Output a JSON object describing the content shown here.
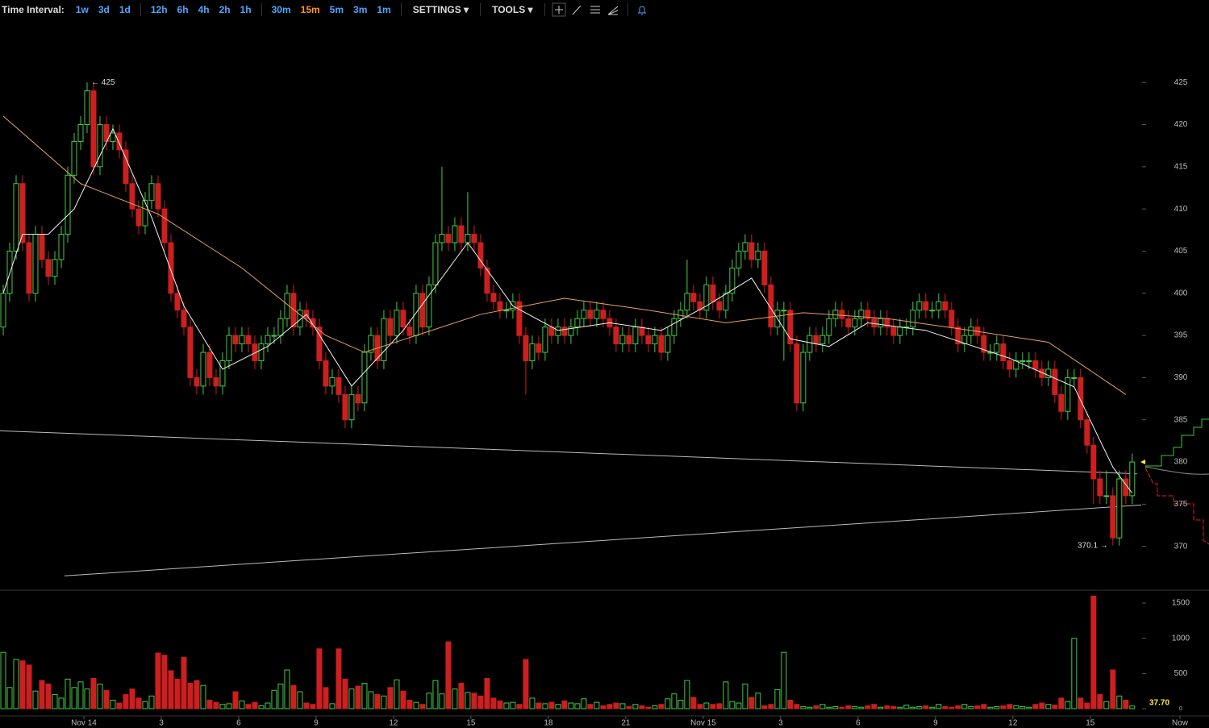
{
  "toolbar": {
    "label": "Time Interval:",
    "groups": [
      [
        "1w",
        "3d",
        "1d"
      ],
      [
        "12h",
        "6h",
        "4h",
        "2h",
        "1h"
      ],
      [
        "30m",
        "15m",
        "5m",
        "3m",
        "1m"
      ]
    ],
    "active": "15m",
    "settings": "SETTINGS",
    "tools": "TOOLS"
  },
  "chart_data": {
    "type": "candlestick",
    "up_color": "#44cc44",
    "down_color": "#cc1f1f",
    "open": [
      396,
      400,
      405,
      413,
      406,
      400,
      407,
      404,
      402,
      404,
      407,
      414,
      418,
      420,
      424,
      415,
      420,
      418,
      419,
      417,
      413,
      410,
      408,
      411,
      413,
      410,
      406,
      400,
      398,
      396,
      390,
      389,
      393,
      390,
      389,
      392,
      395,
      394,
      395,
      394,
      392,
      394,
      395,
      395,
      397,
      400,
      396,
      398,
      397,
      396,
      392,
      389,
      390,
      388,
      385,
      388,
      387,
      393,
      395,
      392,
      397,
      395,
      398,
      396,
      395,
      400,
      396,
      401,
      406,
      407,
      406,
      408,
      406,
      407,
      406,
      403,
      400,
      399,
      398,
      398,
      399,
      395,
      392,
      394,
      393,
      396,
      395,
      396,
      395,
      396,
      397,
      398,
      397,
      398,
      397,
      396,
      394,
      395,
      394,
      396,
      395,
      394,
      395,
      393,
      395,
      397,
      398,
      400,
      399,
      398,
      401,
      399,
      398,
      400,
      403,
      405,
      406,
      404,
      405,
      401,
      396,
      398,
      398,
      394,
      387,
      393,
      395,
      394,
      395,
      397,
      398,
      397,
      396,
      397,
      398,
      397,
      396,
      397,
      396,
      395,
      396,
      396,
      398,
      399,
      398,
      398,
      399,
      398,
      396,
      394,
      395,
      396,
      395,
      393,
      393,
      394,
      392,
      391,
      392,
      392,
      392,
      391,
      390,
      391,
      388,
      386,
      390,
      390,
      385,
      382,
      378,
      376,
      376,
      371,
      378,
      376
    ],
    "high": [
      401,
      406,
      414,
      414,
      407,
      408,
      408,
      405,
      405,
      408,
      415,
      419,
      421,
      425,
      425,
      421,
      421,
      420,
      420,
      418,
      414,
      411,
      412,
      414,
      414,
      411,
      407,
      401,
      399,
      397,
      391,
      394,
      394,
      391,
      393,
      396,
      396,
      396,
      396,
      395,
      395,
      396,
      396,
      398,
      401,
      401,
      399,
      399,
      398,
      397,
      393,
      391,
      391,
      389,
      389,
      389,
      394,
      396,
      396,
      398,
      398,
      399,
      399,
      397,
      401,
      401,
      402,
      407,
      415,
      408,
      409,
      409,
      412,
      408,
      407,
      404,
      401,
      400,
      399,
      400,
      400,
      396,
      395,
      395,
      397,
      397,
      397,
      397,
      397,
      398,
      399,
      399,
      399,
      399,
      398,
      397,
      396,
      396,
      397,
      397,
      396,
      396,
      396,
      396,
      398,
      399,
      404,
      401,
      400,
      402,
      402,
      400,
      401,
      404,
      406,
      407,
      407,
      406,
      406,
      402,
      399,
      399,
      399,
      395,
      394,
      396,
      396,
      396,
      398,
      399,
      399,
      398,
      398,
      399,
      399,
      398,
      398,
      398,
      397,
      397,
      397,
      399,
      400,
      400,
      399,
      400,
      400,
      399,
      397,
      396,
      397,
      397,
      396,
      394,
      395,
      395,
      393,
      393,
      393,
      393,
      393,
      392,
      392,
      392,
      389,
      391,
      391,
      391,
      386,
      383,
      379,
      379,
      377,
      379,
      379,
      381
    ],
    "low": [
      395,
      399,
      404,
      405,
      399,
      399,
      403,
      401,
      401,
      403,
      406,
      413,
      417,
      419,
      414,
      414,
      417,
      417,
      416,
      412,
      409,
      407,
      407,
      410,
      409,
      405,
      399,
      397,
      395,
      389,
      388,
      388,
      389,
      388,
      388,
      391,
      393,
      393,
      393,
      391,
      391,
      393,
      394,
      394,
      396,
      395,
      395,
      396,
      395,
      391,
      388,
      388,
      387,
      384,
      384,
      386,
      386,
      392,
      391,
      391,
      394,
      394,
      395,
      394,
      394,
      395,
      395,
      400,
      405,
      405,
      405,
      405,
      405,
      405,
      402,
      399,
      398,
      397,
      397,
      397,
      394,
      388,
      391,
      392,
      392,
      394,
      394,
      394,
      394,
      395,
      396,
      396,
      396,
      396,
      395,
      393,
      393,
      393,
      393,
      394,
      393,
      393,
      392,
      392,
      394,
      396,
      397,
      398,
      397,
      397,
      398,
      397,
      397,
      399,
      402,
      404,
      403,
      403,
      400,
      395,
      395,
      392,
      393,
      386,
      386,
      392,
      393,
      393,
      394,
      396,
      396,
      395,
      395,
      396,
      396,
      395,
      395,
      395,
      394,
      394,
      395,
      395,
      397,
      397,
      397,
      397,
      397,
      395,
      393,
      393,
      394,
      394,
      392,
      392,
      392,
      391,
      390,
      390,
      391,
      391,
      390,
      389,
      389,
      387,
      385,
      385,
      389,
      384,
      381,
      375,
      375,
      375,
      370.1,
      370.1,
      375,
      375
    ],
    "close": [
      400,
      405,
      413,
      406,
      400,
      407,
      404,
      402,
      404,
      407,
      414,
      418,
      420,
      424,
      415,
      420,
      418,
      419,
      417,
      413,
      410,
      408,
      411,
      413,
      410,
      406,
      400,
      398,
      396,
      390,
      389,
      393,
      390,
      389,
      392,
      395,
      394,
      395,
      394,
      392,
      394,
      395,
      395,
      397,
      400,
      396,
      398,
      397,
      396,
      392,
      389,
      390,
      388,
      385,
      388,
      387,
      393,
      395,
      392,
      397,
      395,
      398,
      396,
      395,
      400,
      396,
      401,
      406,
      407,
      406,
      408,
      406,
      407,
      406,
      403,
      400,
      399,
      398,
      398,
      399,
      395,
      392,
      394,
      393,
      396,
      395,
      396,
      395,
      396,
      397,
      398,
      397,
      398,
      397,
      396,
      394,
      395,
      394,
      396,
      395,
      394,
      395,
      393,
      395,
      397,
      398,
      400,
      399,
      398,
      401,
      399,
      398,
      400,
      403,
      405,
      406,
      404,
      405,
      401,
      396,
      398,
      398,
      394,
      387,
      393,
      395,
      394,
      395,
      397,
      398,
      397,
      396,
      397,
      398,
      397,
      396,
      397,
      396,
      395,
      396,
      396,
      398,
      399,
      398,
      398,
      399,
      398,
      396,
      394,
      395,
      396,
      395,
      393,
      393,
      394,
      392,
      391,
      392,
      392,
      392,
      391,
      390,
      391,
      388,
      386,
      390,
      390,
      385,
      382,
      378,
      376,
      376,
      371,
      378,
      376,
      380
    ],
    "xlim": [
      -0.5,
      186.9
    ],
    "xticks": [
      {
        "value": 12.5,
        "label": "Nov 14"
      },
      {
        "value": 24.5,
        "label": "3"
      },
      {
        "value": 36.5,
        "label": "6"
      },
      {
        "value": 48.5,
        "label": "9"
      },
      {
        "value": 60.5,
        "label": "12"
      },
      {
        "value": 72.5,
        "label": "15"
      },
      {
        "value": 84.5,
        "label": "18"
      },
      {
        "value": 96.5,
        "label": "21"
      },
      {
        "value": 108.5,
        "label": "Nov 15"
      },
      {
        "value": 120.5,
        "label": "3"
      },
      {
        "value": 132.5,
        "label": "6"
      },
      {
        "value": 144.5,
        "label": "9"
      },
      {
        "value": 156.5,
        "label": "12"
      },
      {
        "value": 168.5,
        "label": "15"
      },
      {
        "value": 182.4,
        "label": "Now"
      }
    ],
    "ylim": [
      365,
      431.9
    ],
    "yticks": [
      370,
      375,
      380,
      385,
      390,
      395,
      400,
      405,
      410,
      415,
      420,
      425
    ],
    "annotations": [
      {
        "x": 13,
        "value": 425,
        "label": "← 425"
      },
      {
        "x": 172,
        "value": 370.1,
        "label": "370.1 →"
      }
    ],
    "lines": [
      {
        "color": "#f0f0f0",
        "x": [
          0,
          3,
          7,
          11,
          17,
          23,
          28,
          34,
          41,
          47,
          54,
          62,
          72,
          79,
          86,
          94,
          102,
          109,
          116,
          122,
          128,
          134,
          143,
          156,
          166,
          172,
          175
        ],
        "values": [
          400,
          407,
          407,
          410,
          419.5,
          409,
          398.5,
          391,
          393.7,
          397.5,
          389,
          395.6,
          406,
          398.5,
          395.6,
          396.5,
          395.6,
          398.5,
          401.8,
          394.6,
          393.7,
          396.5,
          395.6,
          392.3,
          388.9,
          379.4,
          376.3
        ]
      },
      {
        "color": "#e8a060",
        "x": [
          0,
          12,
          24,
          37,
          50,
          56,
          62,
          74,
          87,
          100,
          112,
          124,
          137,
          150,
          162,
          174
        ],
        "values": [
          421,
          413,
          409.4,
          403,
          395,
          393,
          394.5,
          397.5,
          399.4,
          398,
          396.5,
          397.7,
          397,
          395.6,
          394.2,
          388
        ]
      }
    ],
    "trendlines": [
      {
        "color": "#bbbbbb",
        "x": [
          -0.5,
          175.75
        ],
        "values": [
          383.7,
          378.6
        ]
      },
      {
        "color": "#bbbbbb",
        "x": [
          9.5,
          176.4
        ],
        "values": [
          366.5,
          374.9
        ]
      }
    ],
    "volume": {
      "values": [
        800,
        300,
        700,
        680,
        620,
        250,
        400,
        350,
        200,
        150,
        420,
        300,
        380,
        280,
        430,
        350,
        260,
        120,
        80,
        200,
        280,
        150,
        100,
        180,
        790,
        760,
        540,
        420,
        730,
        360,
        400,
        330,
        120,
        90,
        60,
        70,
        240,
        110,
        60,
        90,
        40,
        80,
        260,
        350,
        550,
        330,
        240,
        80,
        60,
        850,
        300,
        70,
        850,
        420,
        280,
        320,
        360,
        240,
        200,
        180,
        300,
        410,
        250,
        120,
        90,
        60,
        220,
        400,
        210,
        950,
        280,
        360,
        230,
        220,
        180,
        430,
        150,
        110,
        80,
        90,
        60,
        700,
        150,
        80,
        70,
        90,
        60,
        110,
        80,
        70,
        140,
        60,
        90,
        40,
        60,
        80,
        70,
        30,
        60,
        40,
        20,
        40,
        60,
        140,
        210,
        120,
        400,
        160,
        60,
        80,
        60,
        70,
        380,
        100,
        80,
        350,
        160,
        220,
        40,
        60,
        270,
        800,
        120,
        60,
        30,
        20,
        40,
        60,
        20,
        30,
        20,
        40,
        30,
        20,
        40,
        60,
        20,
        40,
        30,
        20,
        50,
        20,
        30,
        40,
        20,
        60,
        30,
        20,
        40,
        60,
        30,
        40,
        60,
        20,
        30,
        40,
        60,
        40,
        30,
        20,
        60,
        80,
        60,
        50,
        150,
        100,
        1000,
        150,
        80,
        1600,
        200,
        100,
        550,
        180,
        120,
        37.7
      ],
      "ylim": [
        0,
        1650
      ],
      "yticks": [
        0,
        500,
        1000,
        1500
      ],
      "last_label": "37.70"
    }
  }
}
